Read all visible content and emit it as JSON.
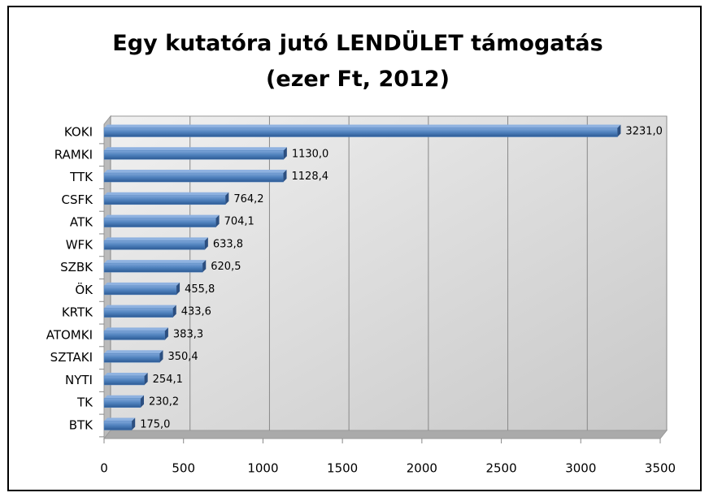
{
  "chart_data": {
    "type": "bar",
    "orientation": "horizontal",
    "title": "Egy kutatóra jutó LENDÜLET támogatás (ezer Ft, 2012)",
    "categories": [
      "KOKI",
      "RAMKI",
      "TTK",
      "CSFK",
      "ATK",
      "WFK",
      "SZBK",
      "ÖK",
      "KRTK",
      "ATOMKI",
      "SZTAKI",
      "NYTI",
      "TK",
      "BTK"
    ],
    "values": [
      3231.0,
      1130.0,
      1128.4,
      764.2,
      704.1,
      633.8,
      620.5,
      455.8,
      433.6,
      383.3,
      350.4,
      254.1,
      230.2,
      175.0
    ],
    "value_labels": [
      "3231,0",
      "1130,0",
      "1128,4",
      "764,2",
      "704,1",
      "633,8",
      "620,5",
      "455,8",
      "433,6",
      "383,3",
      "350,4",
      "254,1",
      "230,2",
      "175,0"
    ],
    "color": "#4f81bd",
    "xlim": [
      0,
      3500
    ],
    "xticks": [
      0,
      500,
      1000,
      1500,
      2000,
      2500,
      3000,
      3500
    ],
    "grid": true
  }
}
